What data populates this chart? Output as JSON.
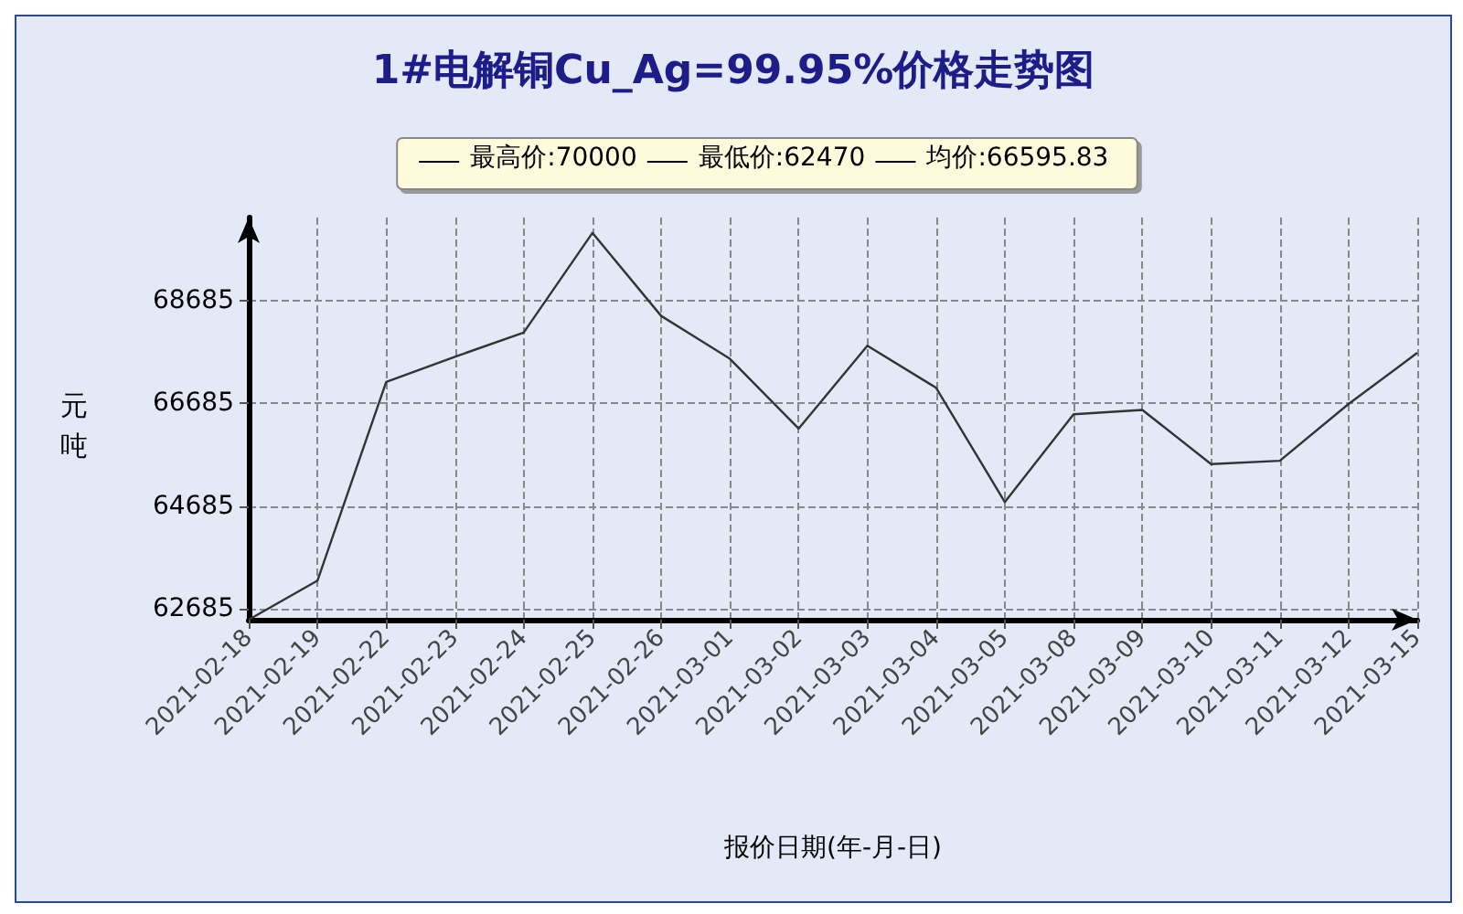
{
  "chart_data": {
    "type": "line",
    "title": "1#电解铜Cu_Ag=99.95%价格走势图",
    "xlabel": "报价日期(年-月-日)",
    "ylabel": "元吨",
    "categories": [
      "2021-02-18",
      "2021-02-19",
      "2021-02-22",
      "2021-02-23",
      "2021-02-24",
      "2021-02-25",
      "2021-02-26",
      "2021-03-01",
      "2021-03-02",
      "2021-03-03",
      "2021-03-04",
      "2021-03-05",
      "2021-03-08",
      "2021-03-09",
      "2021-03-10",
      "2021-03-11",
      "2021-03-12",
      "2021-03-15"
    ],
    "series": [
      {
        "color": "#333333",
        "values": [
          62470,
          63230,
          67100,
          67590,
          68060,
          70000,
          68385,
          67550,
          66190,
          67805,
          66985,
          64760,
          66470,
          66555,
          65500,
          65565,
          66670,
          67665
        ]
      }
    ],
    "ylim": [
      62470,
      70300
    ],
    "yticks": [
      62685,
      64685,
      66685,
      68685
    ],
    "annotations": [
      "最高价:70000",
      "最低价:62470",
      "均价:66595.83"
    ],
    "grid": true,
    "marker": "none",
    "line_style": "solid"
  }
}
